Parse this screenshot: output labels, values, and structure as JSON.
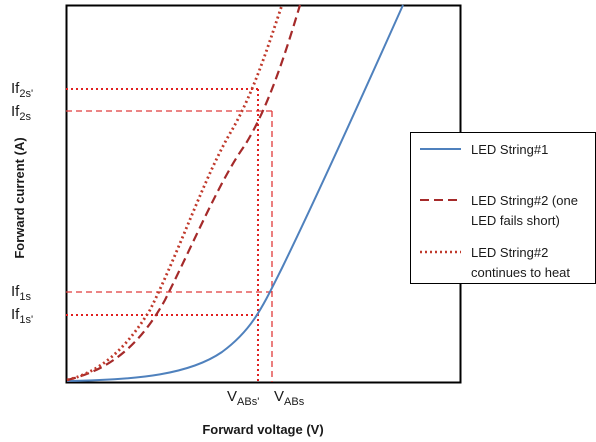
{
  "chart_data": {
    "type": "line",
    "title": "",
    "xlabel": "Forward voltage (V)",
    "ylabel": "Forward current (A)",
    "x_tick_labels": [
      {
        "base": "V",
        "sub": "ABs'"
      },
      {
        "base": "V",
        "sub": "ABs"
      }
    ],
    "y_tick_labels": [
      {
        "base": "If",
        "sub": "2s'"
      },
      {
        "base": "If",
        "sub": "2s"
      },
      {
        "base": "If",
        "sub": "1s"
      },
      {
        "base": "If",
        "sub": "1s'"
      }
    ],
    "grid": false,
    "legend_position": "right",
    "series": [
      {
        "name": "LED String#1",
        "line_style": "solid",
        "color": "#4f81bd",
        "legend_lines": [
          "LED String#1"
        ]
      },
      {
        "name": "LED String#2 (one LED fails short)",
        "line_style": "dashed",
        "color": "#a52a2a",
        "legend_lines": [
          "LED String#2 (one",
          "LED fails short)"
        ]
      },
      {
        "name": "LED String#2 continues to heat",
        "line_style": "dotted",
        "color": "#c0392b",
        "legend_lines": [
          "LED String#2",
          "continues to heat"
        ]
      }
    ],
    "reference_line_colors": {
      "dashed": "#e03a3a",
      "dotted": "#e02020"
    }
  }
}
